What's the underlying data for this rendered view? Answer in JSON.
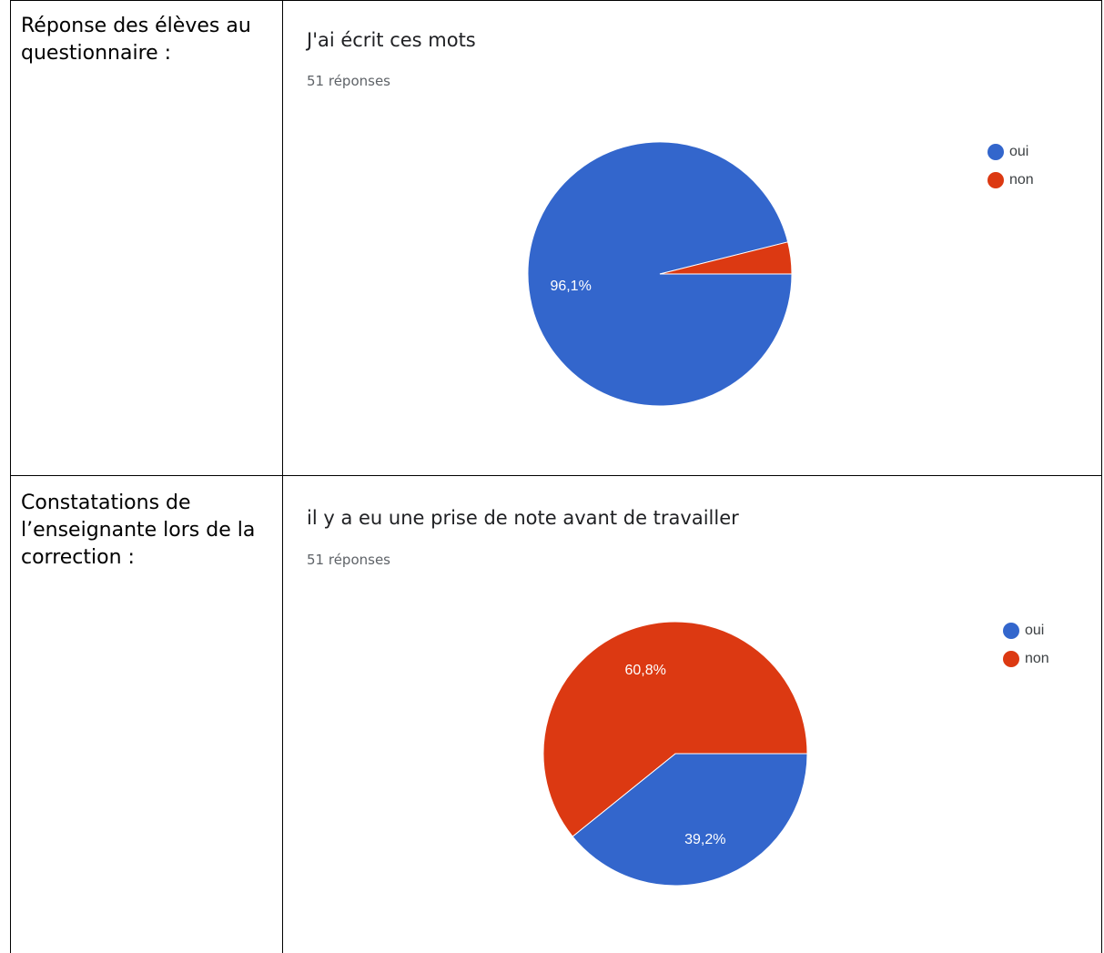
{
  "rows": [
    {
      "label": "Réponse des élèves au questionnaire :"
    },
    {
      "label": "Constatations de l’enseignante lors de la correction :"
    }
  ],
  "colors": {
    "oui": "#3366cc",
    "non": "#dc3912"
  },
  "chart_data": [
    {
      "type": "pie",
      "title": "J'ai écrit ces mots",
      "subtitle": "51 réponses",
      "categories": [
        "oui",
        "non"
      ],
      "values": [
        96.1,
        3.9
      ],
      "data_labels": [
        "96,1%",
        ""
      ],
      "legend": "right"
    },
    {
      "type": "pie",
      "title": "il y a eu une prise de note avant de travailler",
      "subtitle": "51 réponses",
      "categories": [
        "oui",
        "non"
      ],
      "values": [
        39.2,
        60.8
      ],
      "data_labels": [
        "39,2%",
        "60,8%"
      ],
      "legend": "right"
    }
  ]
}
